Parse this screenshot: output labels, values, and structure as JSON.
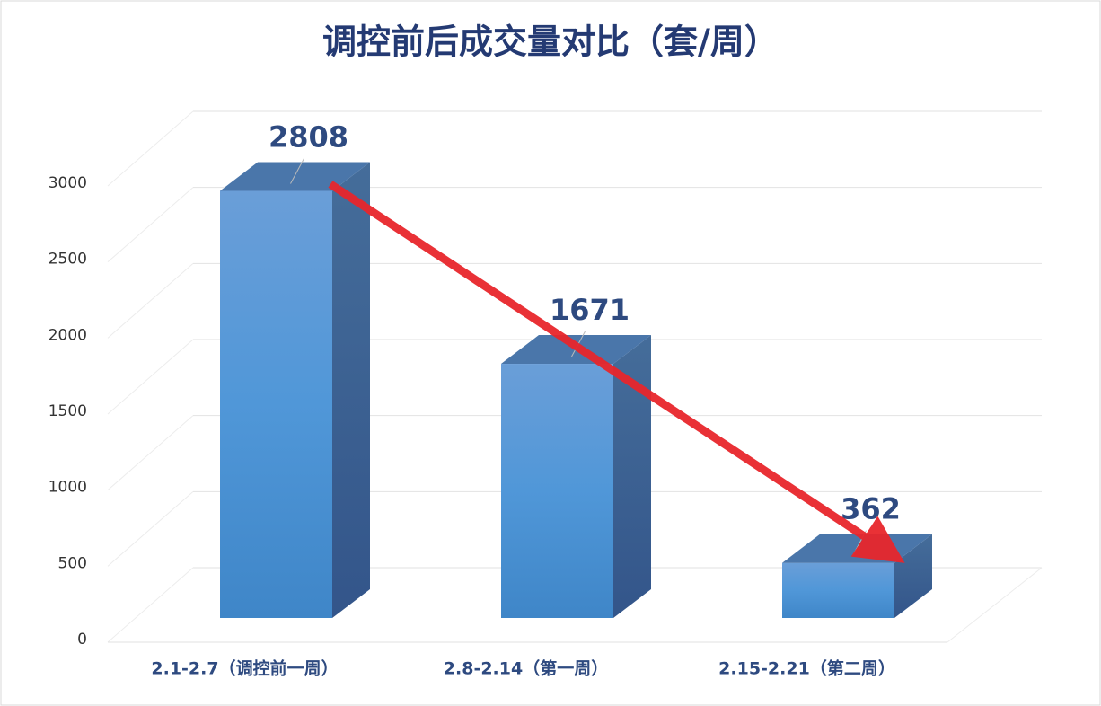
{
  "chart_data": {
    "type": "bar3d",
    "title": "调控前后成交量对比（套/周）",
    "categories": [
      "2.1-2.7（调控前一周）",
      "2.8-2.14（第一周）",
      "2.15-2.21（第二周）"
    ],
    "values": [
      2808,
      1671,
      362
    ],
    "color": "#4f8fd6",
    "ylim": [
      0,
      3000
    ],
    "yticks": [
      0,
      500,
      1000,
      1500,
      2000,
      2500,
      3000
    ],
    "grid": true
  }
}
